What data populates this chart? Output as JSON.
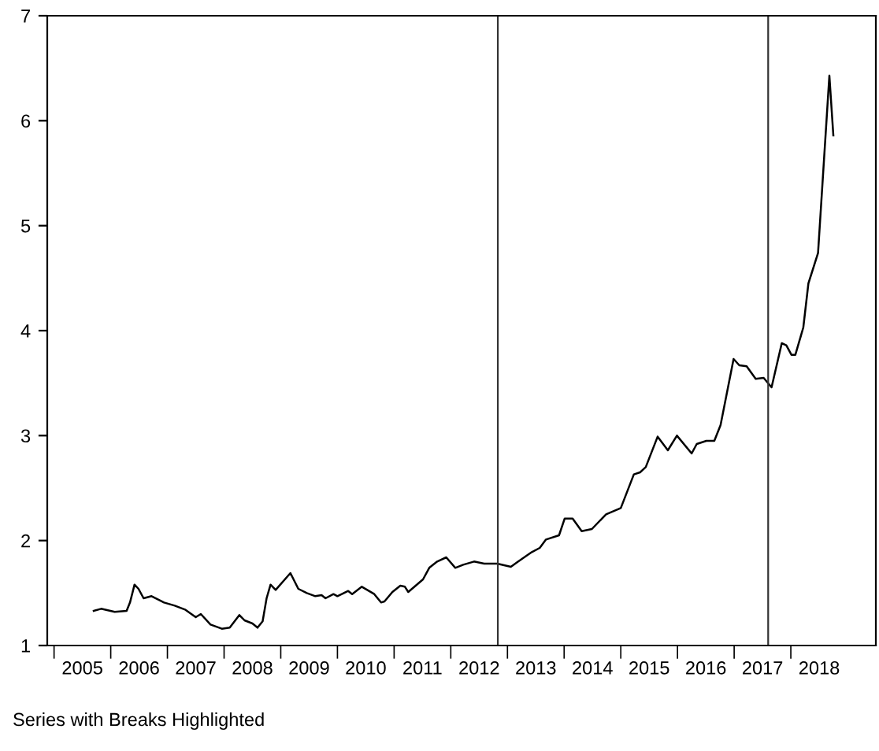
{
  "chart_data": {
    "type": "line",
    "x": [
      2005.7,
      2005.83,
      2006.07,
      2006.28,
      2006.34,
      2006.42,
      2006.49,
      2006.58,
      2006.72,
      2006.94,
      2007.13,
      2007.32,
      2007.5,
      2007.59,
      2007.76,
      2007.96,
      2008.1,
      2008.27,
      2008.36,
      2008.5,
      2008.59,
      2008.68,
      2008.75,
      2008.82,
      2008.91,
      2009.17,
      2009.31,
      2009.46,
      2009.61,
      2009.72,
      2009.79,
      2009.93,
      2010.0,
      2010.19,
      2010.26,
      2010.43,
      2010.65,
      2010.77,
      2010.83,
      2010.97,
      2011.11,
      2011.19,
      2011.25,
      2011.51,
      2011.62,
      2011.76,
      2011.92,
      2012.08,
      2012.22,
      2012.41,
      2012.59,
      2012.82,
      2013.06,
      2013.19,
      2013.43,
      2013.57,
      2013.68,
      2013.91,
      2014.01,
      2014.15,
      2014.31,
      2014.49,
      2014.74,
      2015.0,
      2015.23,
      2015.34,
      2015.44,
      2015.65,
      2015.83,
      2015.99,
      2016.25,
      2016.34,
      2016.51,
      2016.65,
      2016.76,
      2016.99,
      2017.09,
      2017.22,
      2017.38,
      2017.52,
      2017.66,
      2017.84,
      2017.92,
      2018.01,
      2018.08,
      2018.22,
      2018.31,
      2018.48,
      2018.68,
      2018.75
    ],
    "series": [
      {
        "color": "#000000",
        "values": [
          1.33,
          1.35,
          1.32,
          1.33,
          1.41,
          1.58,
          1.54,
          1.45,
          1.47,
          1.41,
          1.38,
          1.34,
          1.27,
          1.3,
          1.2,
          1.16,
          1.17,
          1.29,
          1.24,
          1.21,
          1.17,
          1.23,
          1.45,
          1.58,
          1.53,
          1.69,
          1.54,
          1.5,
          1.47,
          1.48,
          1.45,
          1.49,
          1.47,
          1.52,
          1.49,
          1.56,
          1.49,
          1.41,
          1.42,
          1.51,
          1.57,
          1.56,
          1.51,
          1.63,
          1.74,
          1.8,
          1.84,
          1.74,
          1.77,
          1.8,
          1.78,
          1.78,
          1.75,
          1.8,
          1.89,
          1.93,
          2.01,
          2.05,
          2.21,
          2.21,
          2.09,
          2.11,
          2.25,
          2.31,
          2.63,
          2.65,
          2.7,
          2.99,
          2.86,
          3.0,
          2.83,
          2.92,
          2.95,
          2.95,
          3.1,
          3.73,
          3.67,
          3.66,
          3.54,
          3.55,
          3.46,
          3.88,
          3.86,
          3.77,
          3.77,
          4.03,
          4.45,
          4.74,
          6.43,
          5.86
        ]
      }
    ],
    "xlim": [
      2004.88,
      2019.5
    ],
    "xticks": [
      {
        "value": 2005,
        "label": null
      },
      {
        "value": 2006,
        "label": null
      },
      {
        "value": 2007,
        "label": null
      },
      {
        "value": 2008,
        "label": null
      },
      {
        "value": 2009,
        "label": null
      },
      {
        "value": 2010,
        "label": null
      },
      {
        "value": 2011,
        "label": null
      },
      {
        "value": 2012,
        "label": null
      },
      {
        "value": 2013,
        "label": null
      },
      {
        "value": 2014,
        "label": null
      },
      {
        "value": 2015,
        "label": null
      },
      {
        "value": 2016,
        "label": null
      },
      {
        "value": 2017,
        "label": null
      },
      {
        "value": 2018,
        "label": null
      },
      {
        "value": 2005.5,
        "label": "2005"
      },
      {
        "value": 2006.5,
        "label": "2006"
      },
      {
        "value": 2007.5,
        "label": "2007"
      },
      {
        "value": 2008.5,
        "label": "2008"
      },
      {
        "value": 2009.5,
        "label": "2009"
      },
      {
        "value": 2010.5,
        "label": "2010"
      },
      {
        "value": 2011.5,
        "label": "2011"
      },
      {
        "value": 2012.5,
        "label": "2012"
      },
      {
        "value": 2013.5,
        "label": "2013"
      },
      {
        "value": 2014.5,
        "label": "2014"
      },
      {
        "value": 2015.5,
        "label": "2015"
      },
      {
        "value": 2016.5,
        "label": "2016"
      },
      {
        "value": 2017.5,
        "label": "2017"
      },
      {
        "value": 2018.5,
        "label": "2018"
      }
    ],
    "ylim": [
      1,
      7
    ],
    "yticks": [
      1,
      2,
      3,
      4,
      5,
      6,
      7
    ],
    "ref_lines": [
      {
        "axis": "x",
        "value": 2012.83,
        "color": "#333333"
      },
      {
        "axis": "x",
        "value": 2017.6,
        "color": "#333333"
      }
    ],
    "annotations": [
      "Series with Breaks Highlighted"
    ],
    "grid": false,
    "marker": "none",
    "line_style": "solid"
  }
}
